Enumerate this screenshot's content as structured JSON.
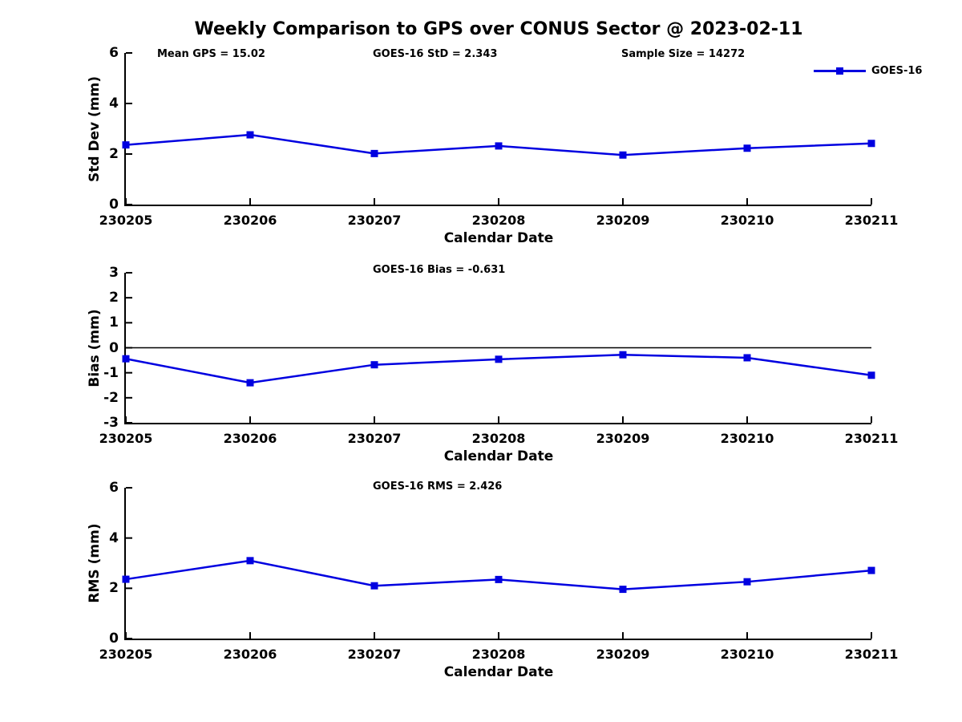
{
  "title": "Weekly Comparison to GPS over CONUS Sector @ 2023-02-11",
  "legend": {
    "label": "GOES-16"
  },
  "colors": {
    "series": "#0000e0",
    "axis": "#000000"
  },
  "categories": [
    "230205",
    "230206",
    "230207",
    "230208",
    "230209",
    "230210",
    "230211"
  ],
  "chart_data": [
    {
      "type": "line",
      "ylabel": "Std Dev (mm)",
      "xlabel": "Calendar Date",
      "ylim": [
        0,
        6
      ],
      "yticks": [
        0,
        2,
        4,
        6
      ],
      "grid": false,
      "zero_line": false,
      "legend_position": "top-right-outside",
      "annotations": [
        "Mean GPS = 15.02",
        "GOES-16 StD = 2.343",
        "Sample Size = 14272"
      ],
      "series": [
        {
          "name": "GOES-16",
          "marker": "square",
          "values": [
            2.36,
            2.76,
            2.02,
            2.32,
            1.96,
            2.23,
            2.42
          ]
        }
      ]
    },
    {
      "type": "line",
      "ylabel": "Bias (mm)",
      "xlabel": "Calendar Date",
      "ylim": [
        -3,
        3
      ],
      "yticks": [
        -3,
        -2,
        -1,
        0,
        1,
        2,
        3
      ],
      "grid": false,
      "zero_line": true,
      "annotations": [
        "GOES-16 Bias  = -0.631"
      ],
      "series": [
        {
          "name": "GOES-16",
          "marker": "square",
          "values": [
            -0.44,
            -1.4,
            -0.68,
            -0.46,
            -0.28,
            -0.4,
            -1.1
          ]
        }
      ]
    },
    {
      "type": "line",
      "ylabel": "RMS (mm)",
      "xlabel": "Calendar Date",
      "ylim": [
        0,
        6
      ],
      "yticks": [
        0,
        2,
        4,
        6
      ],
      "grid": false,
      "zero_line": false,
      "annotations": [
        "GOES-16 RMS = 2.426"
      ],
      "series": [
        {
          "name": "GOES-16",
          "marker": "square",
          "values": [
            2.36,
            3.1,
            2.1,
            2.35,
            1.96,
            2.26,
            2.71
          ]
        }
      ]
    }
  ]
}
